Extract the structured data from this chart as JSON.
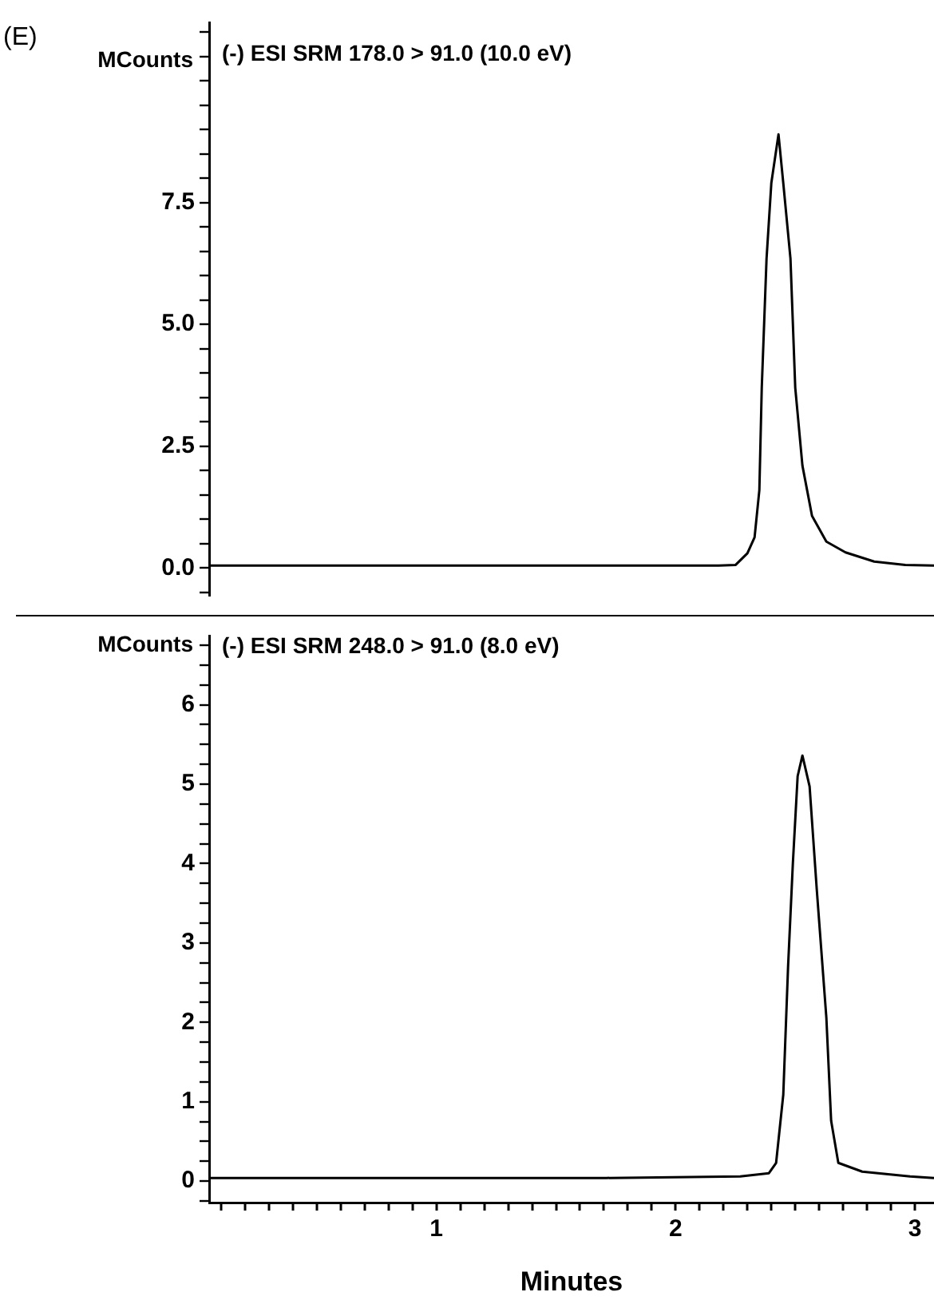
{
  "chart_data": [
    {
      "type": "line",
      "title": "(-) ESI SRM 178.0 > 91.0 (10.0 eV)",
      "ylabel": "MCounts",
      "annotations": [
        "(E)"
      ],
      "tick_labels": "y",
      "legend": false,
      "grid": false,
      "marker": "none",
      "line_style": "solid",
      "xlim": [
        0.05,
        3.08
      ],
      "ylim": [
        -0.57,
        11.2
      ],
      "yticks": [
        {
          "value": -0.5,
          "label": null
        },
        {
          "value": 0,
          "label": "0.0"
        },
        {
          "value": 0.5,
          "label": null
        },
        {
          "value": 1,
          "label": null
        },
        {
          "value": 1.5,
          "label": null
        },
        {
          "value": 2,
          "label": null
        },
        2.5,
        {
          "value": 3,
          "label": null
        },
        {
          "value": 3.5,
          "label": null
        },
        {
          "value": 4,
          "label": null
        },
        {
          "value": 4.5,
          "label": null
        },
        {
          "value": 5,
          "label": "5.0"
        },
        {
          "value": 5.5,
          "label": null
        },
        {
          "value": 6,
          "label": null
        },
        {
          "value": 6.5,
          "label": null
        },
        {
          "value": 7,
          "label": null
        },
        7.5,
        {
          "value": 8,
          "label": null
        },
        {
          "value": 8.5,
          "label": null
        },
        {
          "value": 9,
          "label": null
        },
        {
          "value": 9.5,
          "label": null
        },
        {
          "value": 10,
          "label": null
        },
        {
          "value": 10.5,
          "label": null
        },
        {
          "value": 11,
          "label": null
        }
      ],
      "series": [
        {
          "color": "#000000",
          "x": [
            0.05,
            2.18,
            2.25,
            2.3,
            2.33,
            2.35,
            2.36,
            2.38,
            2.4,
            2.43,
            2.45,
            2.48,
            2.5,
            2.53,
            2.57,
            2.63,
            2.71,
            2.83,
            2.96,
            3.08
          ],
          "values": [
            0.05,
            0.05,
            0.06,
            0.3,
            0.63,
            1.6,
            3.7,
            6.35,
            7.9,
            8.9,
            7.9,
            6.35,
            3.7,
            2.1,
            1.07,
            0.54,
            0.32,
            0.13,
            0.06,
            0.05
          ]
        }
      ]
    },
    {
      "type": "line",
      "title": "(-) ESI SRM 248.0 > 91.0 (8.0 eV)",
      "ylabel": "MCounts",
      "xlabel": "Minutes",
      "legend": false,
      "grid": false,
      "marker": "none",
      "line_style": "solid",
      "xlim": [
        0.05,
        3.08
      ],
      "ylim": [
        -0.27,
        6.87
      ],
      "xticks": [
        {
          "value": 0.1,
          "label": null
        },
        {
          "value": 0.2,
          "label": null
        },
        {
          "value": 0.3,
          "label": null
        },
        {
          "value": 0.4,
          "label": null
        },
        {
          "value": 0.5,
          "label": null
        },
        {
          "value": 0.6,
          "label": null
        },
        {
          "value": 0.7,
          "label": null
        },
        {
          "value": 0.8,
          "label": null
        },
        {
          "value": 0.9,
          "label": null
        },
        1,
        {
          "value": 1.1,
          "label": null
        },
        {
          "value": 1.2,
          "label": null
        },
        {
          "value": 1.3,
          "label": null
        },
        {
          "value": 1.4,
          "label": null
        },
        {
          "value": 1.5,
          "label": null
        },
        {
          "value": 1.6,
          "label": null
        },
        {
          "value": 1.7,
          "label": null
        },
        {
          "value": 1.8,
          "label": null
        },
        {
          "value": 1.9,
          "label": null
        },
        2,
        {
          "value": 2.1,
          "label": null
        },
        {
          "value": 2.2,
          "label": null
        },
        {
          "value": 2.3,
          "label": null
        },
        {
          "value": 2.4,
          "label": null
        },
        {
          "value": 2.5,
          "label": null
        },
        {
          "value": 2.6,
          "label": null
        },
        {
          "value": 2.7,
          "label": null
        },
        {
          "value": 2.8,
          "label": null
        },
        {
          "value": 2.9,
          "label": null
        },
        3
      ],
      "yticks": [
        {
          "value": -0.25,
          "label": null
        },
        0,
        {
          "value": 0.25,
          "label": null
        },
        {
          "value": 0.5,
          "label": null
        },
        {
          "value": 0.75,
          "label": null
        },
        1,
        {
          "value": 1.25,
          "label": null
        },
        {
          "value": 1.5,
          "label": null
        },
        {
          "value": 1.75,
          "label": null
        },
        2,
        {
          "value": 2.25,
          "label": null
        },
        {
          "value": 2.5,
          "label": null
        },
        {
          "value": 2.75,
          "label": null
        },
        3,
        {
          "value": 3.25,
          "label": null
        },
        {
          "value": 3.5,
          "label": null
        },
        {
          "value": 3.75,
          "label": null
        },
        4,
        {
          "value": 4.25,
          "label": null
        },
        {
          "value": 4.5,
          "label": null
        },
        {
          "value": 4.75,
          "label": null
        },
        5,
        {
          "value": 5.25,
          "label": null
        },
        {
          "value": 5.5,
          "label": null
        },
        {
          "value": 5.75,
          "label": null
        },
        6,
        {
          "value": 6.25,
          "label": null
        },
        {
          "value": 6.5,
          "label": null
        },
        {
          "value": 6.75,
          "label": null
        }
      ],
      "series": [
        {
          "color": "#000000",
          "x": [
            0.05,
            1.71,
            2.27,
            2.39,
            2.42,
            2.45,
            2.47,
            2.49,
            2.51,
            2.53,
            2.56,
            2.59,
            2.63,
            2.65,
            2.68,
            2.78,
            2.98,
            3.08
          ],
          "values": [
            0.04,
            0.04,
            0.06,
            0.1,
            0.23,
            1.09,
            2.7,
            4.0,
            5.1,
            5.36,
            4.97,
            3.67,
            2.06,
            0.76,
            0.23,
            0.12,
            0.06,
            0.04
          ]
        }
      ]
    }
  ]
}
